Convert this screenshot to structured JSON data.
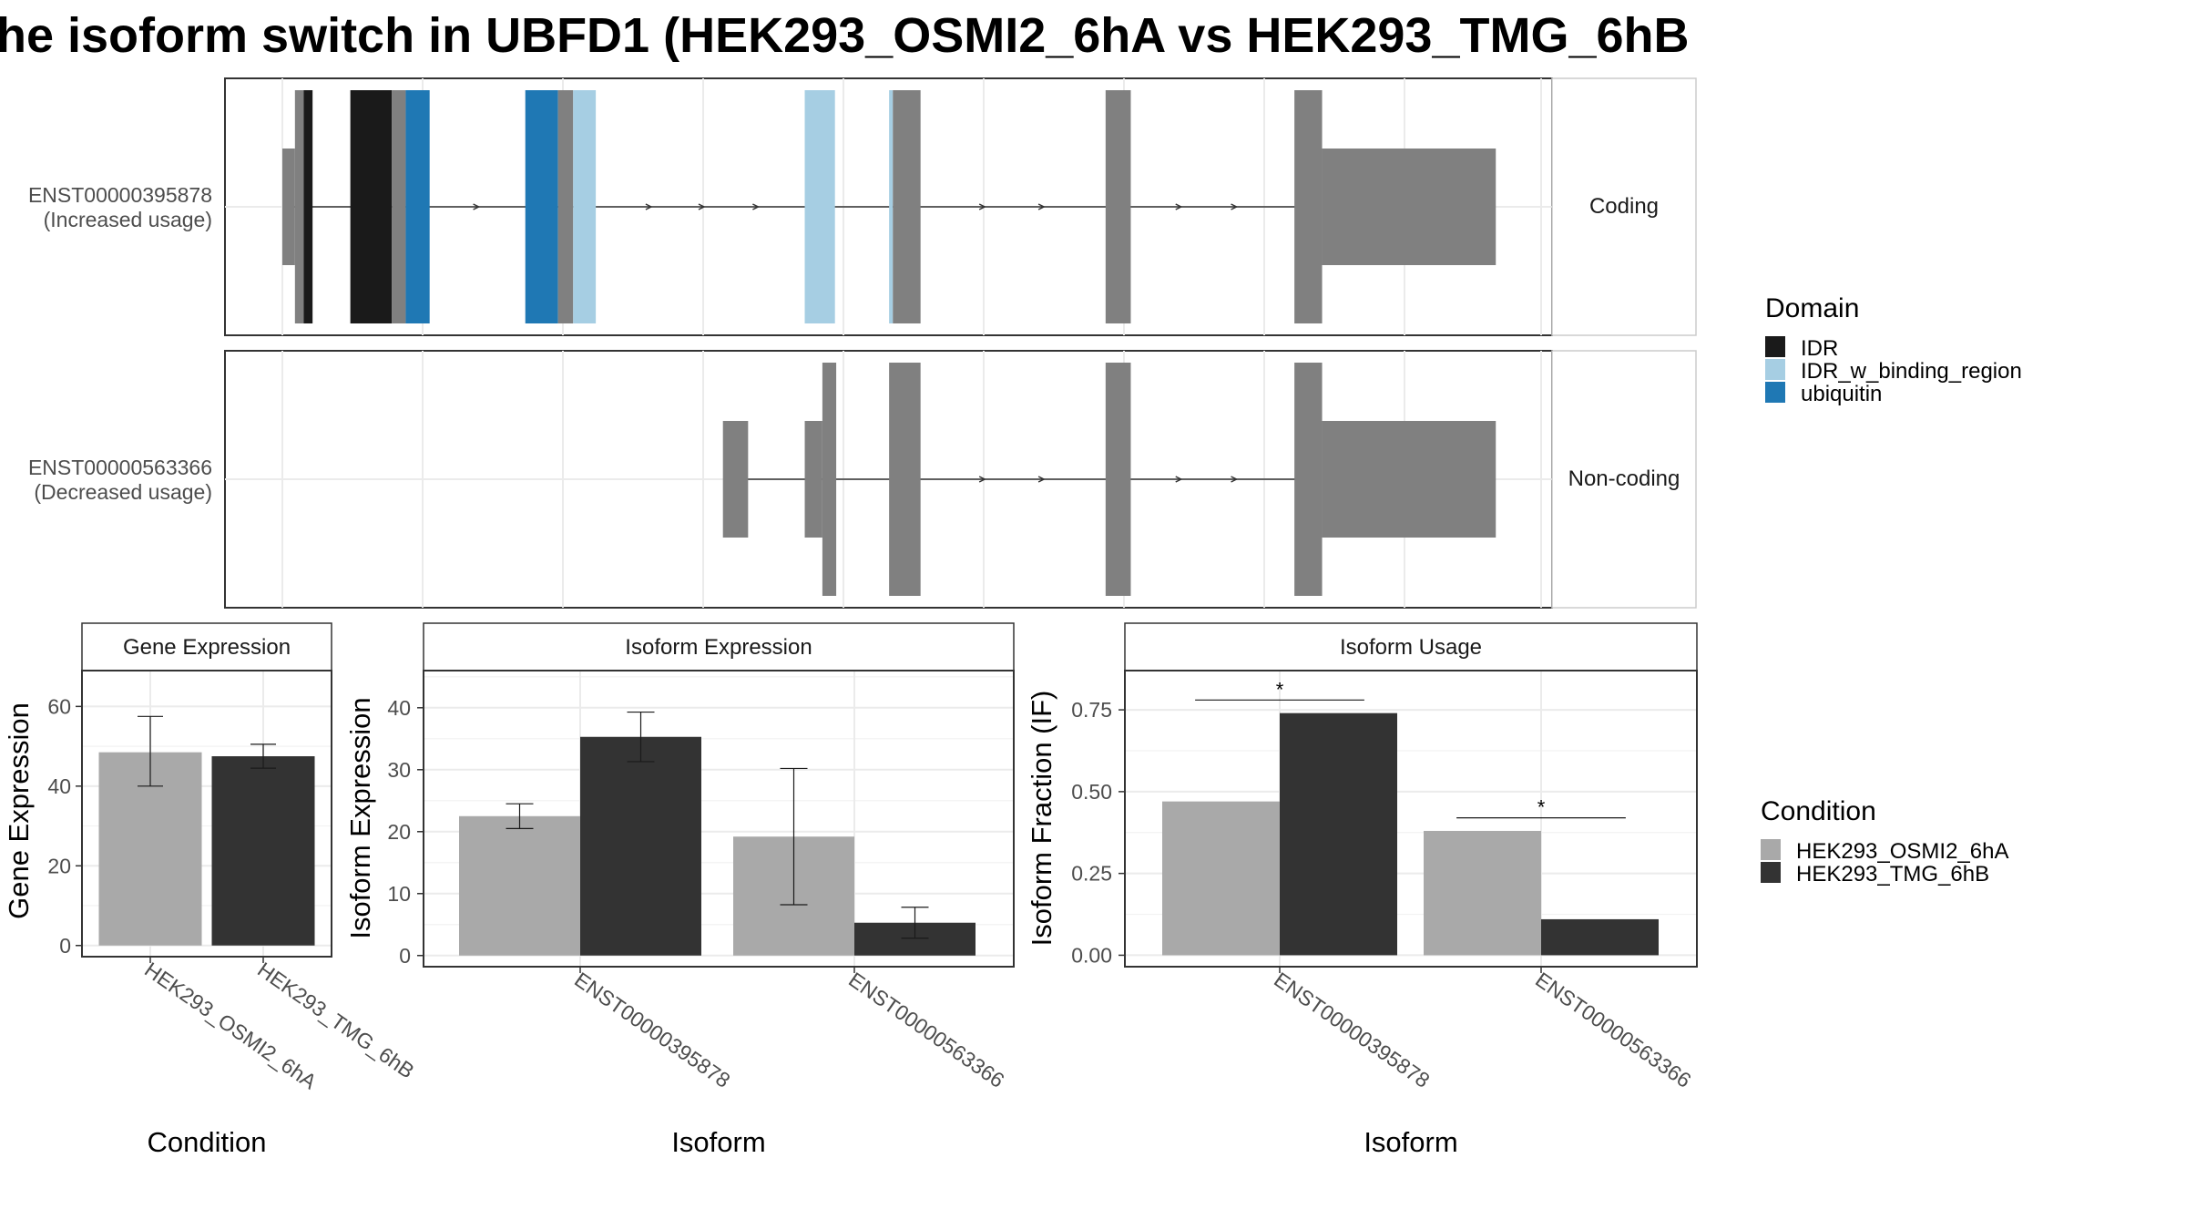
{
  "title": "he isoform switch in UBFD1 (HEK293_OSMI2_6hA vs HEK293_TMG_6hB",
  "colors": {
    "IDR": "#1a1a1a",
    "IDR_w_binding_region": "#a6cee3",
    "ubiquitin": "#1f78b4",
    "exon": "#808080",
    "cond_a": "#a9a9a9",
    "cond_b": "#333333"
  },
  "legends": {
    "domain_title": "Domain",
    "domain_items": [
      "IDR",
      "IDR_w_binding_region",
      "ubiquitin"
    ],
    "condition_title": "Condition",
    "condition_items": [
      "HEK293_OSMI2_6hA",
      "HEK293_TMG_6hB"
    ]
  },
  "chart_data": [
    {
      "type": "gene_structure",
      "x_range": [
        0,
        100
      ],
      "transcripts": [
        {
          "id": "ENST00000395878",
          "label": "ENST00000395878",
          "usage": "(Increased usage)",
          "strip": "Coding",
          "intron": [
            0.5,
            80.9
          ],
          "exons": [
            {
              "s": 0,
              "e": 1,
              "kind": "utr"
            },
            {
              "s": 1,
              "e": 1.7,
              "kind": "cds"
            },
            {
              "s": 1.7,
              "e": 2.4,
              "kind": "IDR"
            },
            {
              "s": 5.4,
              "e": 8.7,
              "kind": "IDR"
            },
            {
              "s": 8.7,
              "e": 9.8,
              "kind": "cds"
            },
            {
              "s": 9.8,
              "e": 11.7,
              "kind": "ubiquitin"
            },
            {
              "s": 19.3,
              "e": 21.9,
              "kind": "ubiquitin"
            },
            {
              "s": 21.9,
              "e": 23.1,
              "kind": "cds"
            },
            {
              "s": 23.1,
              "e": 24.9,
              "kind": "IDR_w_binding_region"
            },
            {
              "s": 41.5,
              "e": 43.9,
              "kind": "IDR_w_binding_region"
            },
            {
              "s": 48.2,
              "e": 48.5,
              "kind": "IDR_w_binding_region"
            },
            {
              "s": 48.5,
              "e": 50.7,
              "kind": "cds"
            },
            {
              "s": 65.4,
              "e": 67.4,
              "kind": "cds"
            },
            {
              "s": 80.4,
              "e": 82.6,
              "kind": "cds"
            },
            {
              "s": 82.6,
              "e": 96.4,
              "kind": "utr"
            }
          ],
          "arrows": [
            15.6,
            29.3,
            33.5,
            37.8,
            55.8,
            60.5,
            71.4,
            75.8
          ]
        },
        {
          "id": "ENST00000563366",
          "label": "ENST00000563366",
          "usage": "(Decreased usage)",
          "strip": "Non-coding",
          "intron": [
            35.5,
            80.9
          ],
          "exons": [
            {
              "s": 35,
              "e": 37,
              "kind": "utr"
            },
            {
              "s": 41.5,
              "e": 42.9,
              "kind": "utr"
            },
            {
              "s": 42.9,
              "e": 44,
              "kind": "cds"
            },
            {
              "s": 48.2,
              "e": 50.7,
              "kind": "cds"
            },
            {
              "s": 65.4,
              "e": 67.4,
              "kind": "cds"
            },
            {
              "s": 80.4,
              "e": 82.6,
              "kind": "cds"
            },
            {
              "s": 82.6,
              "e": 96.4,
              "kind": "utr"
            }
          ],
          "arrows": [
            55.8,
            60.5,
            71.4,
            75.8
          ]
        }
      ]
    },
    {
      "type": "bar",
      "title": "Gene Expression",
      "xlabel": "Condition",
      "ylabel": "Gene Expression",
      "ylim": [
        -2.8,
        69
      ],
      "yticks": [
        0,
        20,
        40,
        60
      ],
      "categories": [
        "HEK293_OSMI2_6hA",
        "HEK293_TMG_6hB"
      ],
      "values": [
        48.5,
        47.5
      ],
      "error": [
        [
          40,
          57.5
        ],
        [
          44.5,
          50.5
        ]
      ]
    },
    {
      "type": "bar",
      "title": "Isoform Expression",
      "xlabel": "Isoform",
      "ylabel": "Isoform Expression",
      "ylim": [
        -1.8,
        46
      ],
      "yticks": [
        0,
        10,
        20,
        30,
        40
      ],
      "categories": [
        "ENST00000395878",
        "ENST00000563366"
      ],
      "series": [
        {
          "name": "HEK293_OSMI2_6hA",
          "values": [
            22.5,
            19.2
          ],
          "error": [
            [
              20.5,
              24.5
            ],
            [
              8.2,
              30.2
            ]
          ]
        },
        {
          "name": "HEK293_TMG_6hB",
          "values": [
            35.3,
            5.3
          ],
          "error": [
            [
              31.3,
              39.3
            ],
            [
              2.8,
              7.8
            ]
          ]
        }
      ]
    },
    {
      "type": "bar",
      "title": "Isoform Usage",
      "xlabel": "Isoform",
      "ylabel": "Isoform Fraction (IF)",
      "ylim": [
        -0.035,
        0.87
      ],
      "yticks": [
        "0.00",
        "0.25",
        "0.50",
        "0.75"
      ],
      "categories": [
        "ENST00000395878",
        "ENST00000563366"
      ],
      "series": [
        {
          "name": "HEK293_OSMI2_6hA",
          "values": [
            0.47,
            0.38
          ]
        },
        {
          "name": "HEK293_TMG_6hB",
          "values": [
            0.74,
            0.11
          ]
        }
      ],
      "significance": [
        {
          "label": "*",
          "y": 0.78
        },
        {
          "label": "*",
          "y": 0.42
        }
      ]
    }
  ]
}
